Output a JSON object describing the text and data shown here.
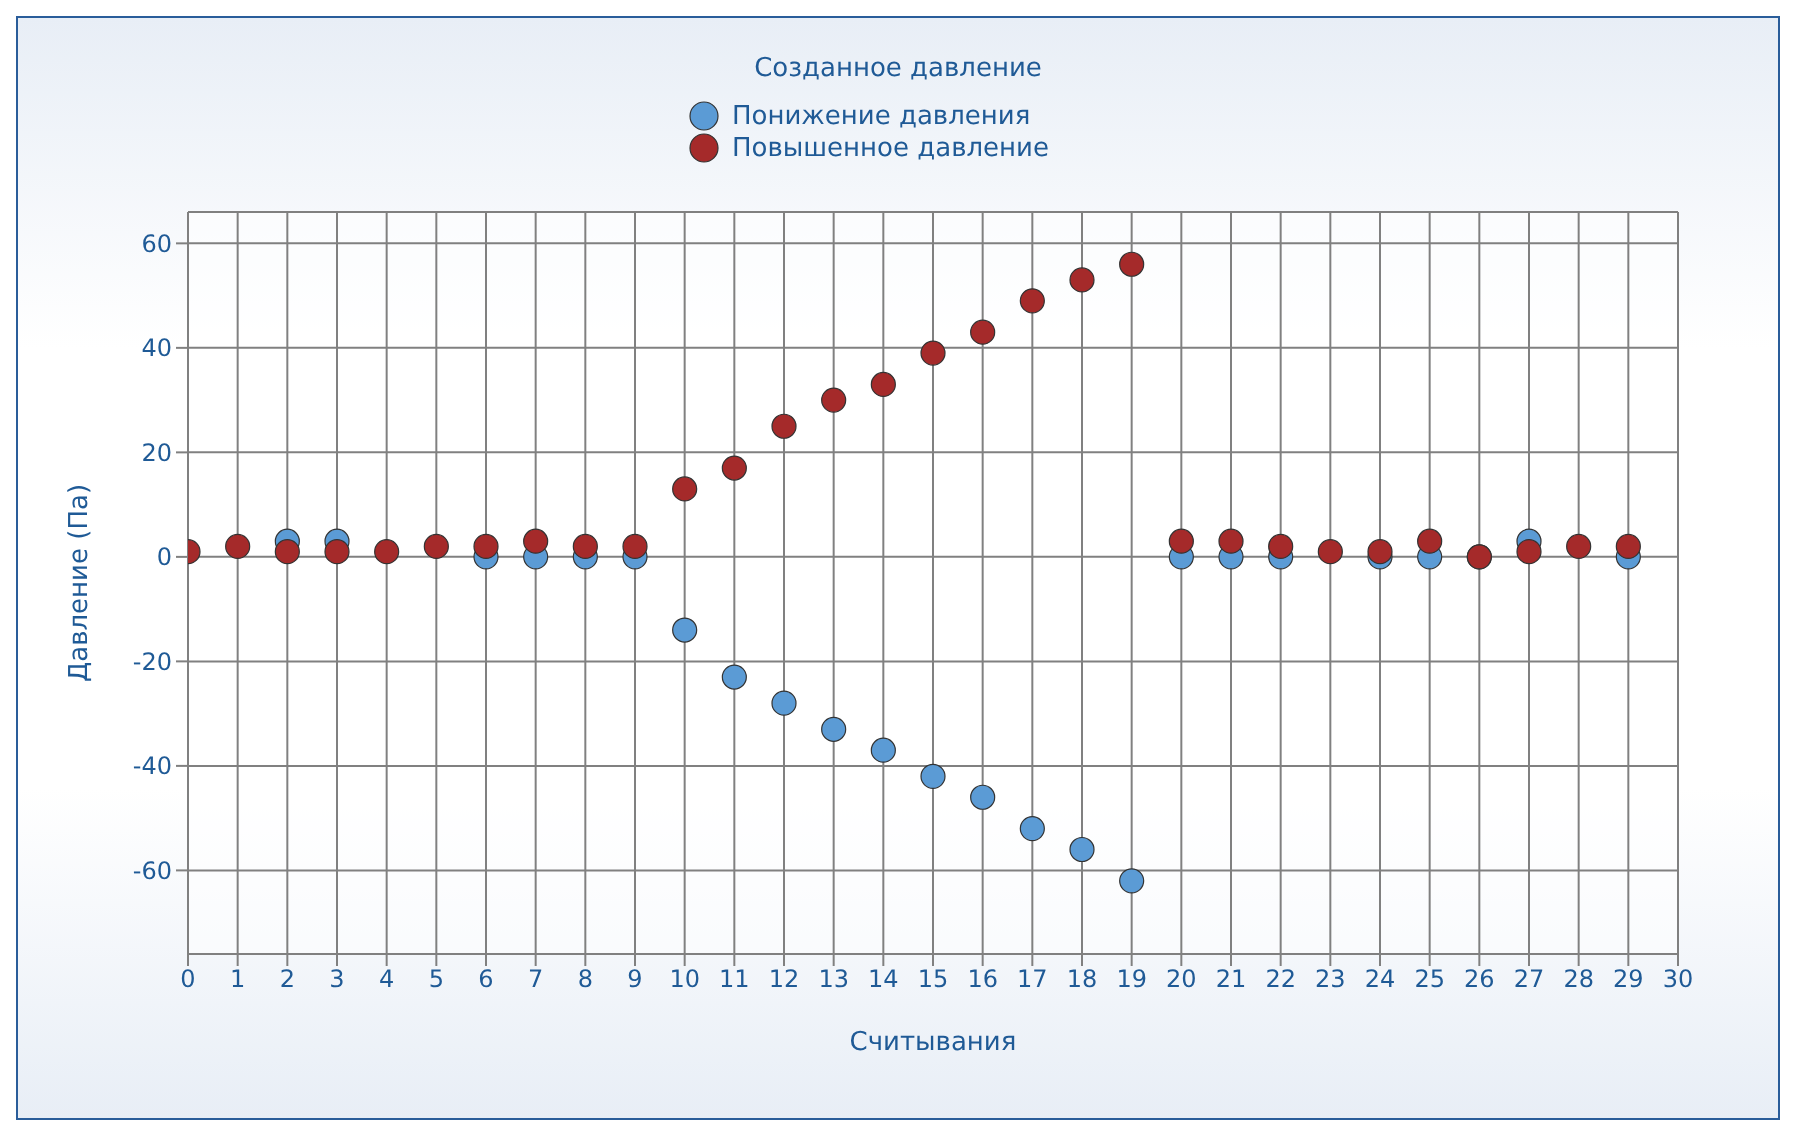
{
  "chart_data": {
    "type": "scatter",
    "title": "Созданное давление",
    "xlabel": "Считывания",
    "ylabel": "Давление (Па)",
    "x": [
      0,
      1,
      2,
      3,
      4,
      5,
      6,
      7,
      8,
      9,
      10,
      11,
      12,
      13,
      14,
      15,
      16,
      17,
      18,
      19,
      20,
      21,
      22,
      23,
      24,
      25,
      26,
      27,
      28,
      29
    ],
    "series": [
      {
        "name": "Понижение давления",
        "color": "#5b9bd5",
        "values": [
          null,
          null,
          3,
          3,
          null,
          null,
          0,
          0,
          0,
          0,
          -14,
          -23,
          -28,
          -33,
          -37,
          -42,
          -46,
          -52,
          -56,
          -62,
          0,
          0,
          0,
          null,
          0,
          0,
          0,
          3,
          null,
          0
        ]
      },
      {
        "name": "Повышенное давление",
        "color": "#a52a2a",
        "values": [
          1,
          2,
          1,
          1,
          1,
          2,
          2,
          3,
          2,
          2,
          13,
          17,
          25,
          30,
          33,
          39,
          43,
          49,
          53,
          56,
          3,
          3,
          2,
          1,
          1,
          3,
          0,
          1,
          2,
          2
        ]
      }
    ],
    "xlim": [
      0,
      30
    ],
    "xticks": [
      0,
      1,
      2,
      3,
      4,
      5,
      6,
      7,
      8,
      9,
      10,
      11,
      12,
      13,
      14,
      15,
      16,
      17,
      18,
      19,
      20,
      21,
      22,
      23,
      24,
      25,
      26,
      27,
      28,
      29,
      30
    ],
    "ylim": [
      -76,
      66
    ],
    "yticks": [
      -60,
      -40,
      -20,
      0,
      20,
      40,
      60
    ],
    "grid": true,
    "legend": "top",
    "marker": "circle"
  }
}
